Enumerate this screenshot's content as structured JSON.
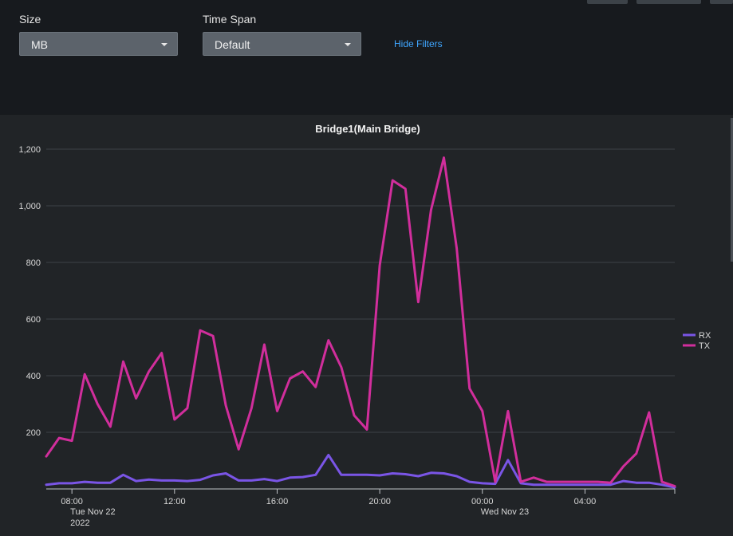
{
  "filters": {
    "size": {
      "label": "Size",
      "value": "MB"
    },
    "time_span": {
      "label": "Time Span",
      "value": "Default"
    },
    "hide_filters_label": "Hide Filters"
  },
  "chart_data": {
    "type": "line",
    "title": "Bridge1(Main Bridge)",
    "xlabel": "",
    "ylabel": "",
    "ylim": [
      0,
      1200
    ],
    "y_ticks": [
      200,
      400,
      600,
      800,
      "1,000",
      "1,200"
    ],
    "x_ticks": [
      {
        "hour": 8,
        "label": "08:00",
        "sub": [
          "Tue Nov 22",
          "2022"
        ]
      },
      {
        "hour": 12,
        "label": "12:00",
        "sub": []
      },
      {
        "hour": 16,
        "label": "16:00",
        "sub": []
      },
      {
        "hour": 20,
        "label": "20:00",
        "sub": []
      },
      {
        "hour": 24,
        "label": "00:00",
        "sub": [
          "Wed Nov 23"
        ]
      },
      {
        "hour": 28,
        "label": "04:00",
        "sub": []
      }
    ],
    "x_hours": [
      7.0,
      7.5,
      8.0,
      8.5,
      9.0,
      9.5,
      10.0,
      10.5,
      11.0,
      11.5,
      12.0,
      12.5,
      13.0,
      13.5,
      14.0,
      14.5,
      15.0,
      15.5,
      16.0,
      16.5,
      17.0,
      17.5,
      18.0,
      18.5,
      19.0,
      19.5,
      20.0,
      20.5,
      21.0,
      21.5,
      22.0,
      22.5,
      23.0,
      23.5,
      24.0,
      24.5,
      25.0,
      25.5,
      26.0,
      26.5,
      27.0,
      27.5,
      28.0,
      28.5,
      29.0,
      29.5,
      30.0,
      30.5,
      31.0,
      31.5
    ],
    "legend_position": "right",
    "grid": true,
    "series": [
      {
        "name": "RX",
        "color": "#7a55e6",
        "values": [
          15,
          20,
          20,
          25,
          22,
          22,
          50,
          28,
          33,
          30,
          30,
          28,
          32,
          48,
          55,
          30,
          30,
          35,
          28,
          40,
          42,
          50,
          120,
          50,
          50,
          50,
          48,
          55,
          52,
          45,
          57,
          55,
          45,
          25,
          20,
          18,
          102,
          20,
          15,
          15,
          15,
          15,
          15,
          15,
          15,
          28,
          22,
          22,
          15,
          5
        ]
      },
      {
        "name": "TX",
        "color": "#d12e9c",
        "values": [
          115,
          180,
          170,
          405,
          300,
          220,
          450,
          320,
          415,
          480,
          245,
          285,
          560,
          540,
          295,
          140,
          285,
          510,
          275,
          390,
          415,
          360,
          525,
          430,
          260,
          210,
          790,
          1090,
          1060,
          660,
          985,
          1170,
          850,
          355,
          275,
          25,
          275,
          25,
          40,
          25,
          25,
          25,
          25,
          25,
          22,
          80,
          125,
          270,
          25,
          10
        ]
      }
    ]
  }
}
